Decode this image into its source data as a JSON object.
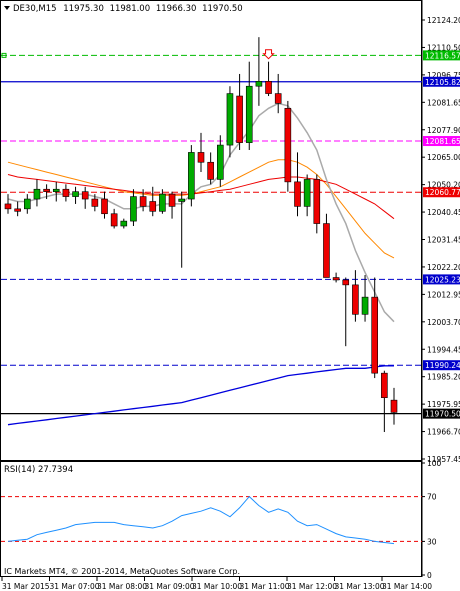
{
  "chart_data": {
    "type": "candlestick",
    "header": {
      "symbol": "DE30,M15",
      "open": "11975.30",
      "high": "11981.00",
      "low": "11966.30",
      "close": "11970.50"
    },
    "copyright": "IC Markets MT4, © 2001-2014, MetaQuotes Software Corp.",
    "price_axis": {
      "ylim": [
        11952.0,
        12131.0
      ],
      "ticks": [
        "12124.20",
        "12110.50",
        "12096.75",
        "12081.65",
        "12077.90",
        "12065.00",
        "12050.20",
        "12040.45",
        "12031.45",
        "12022.20",
        "12012.95",
        "12003.70",
        "11994.45",
        "11985.20",
        "11975.95",
        "11966.70",
        "11957.45"
      ]
    },
    "levels": [
      {
        "price": 12116.57,
        "label": "12116.57",
        "color": "#00bb00",
        "style": "dashed"
      },
      {
        "price": 12105.82,
        "label": "12105.82",
        "color": "#0000cc",
        "style": "solid"
      },
      {
        "price": 12081.65,
        "label": "12081.65",
        "color": "#ff00ff",
        "style": "dashed"
      },
      {
        "price": 12060.77,
        "label": "12060.77",
        "color": "#ee0000",
        "style": "dashed"
      },
      {
        "price": 12025.23,
        "label": "12025.23",
        "color": "#0000cc",
        "style": "dashed"
      },
      {
        "price": 11990.24,
        "label": "11990.24",
        "color": "#0000cc",
        "style": "dashed"
      },
      {
        "price": 11970.5,
        "label": "11970.50",
        "color": "#000000",
        "style": "solid"
      }
    ],
    "candles": [
      {
        "o": 12056,
        "h": 12060,
        "l": 12052,
        "c": 12054
      },
      {
        "o": 12054,
        "h": 12057,
        "l": 12051,
        "c": 12053
      },
      {
        "o": 12054,
        "h": 12060,
        "l": 12052,
        "c": 12058
      },
      {
        "o": 12058,
        "h": 12066,
        "l": 12055,
        "c": 12062
      },
      {
        "o": 12062,
        "h": 12064,
        "l": 12058,
        "c": 12061
      },
      {
        "o": 12061,
        "h": 12065,
        "l": 12057,
        "c": 12062
      },
      {
        "o": 12062,
        "h": 12064,
        "l": 12057,
        "c": 12059
      },
      {
        "o": 12059,
        "h": 12063,
        "l": 12056,
        "c": 12061
      },
      {
        "o": 12061,
        "h": 12063,
        "l": 12054,
        "c": 12058
      },
      {
        "o": 12058,
        "h": 12060,
        "l": 12053,
        "c": 12055
      },
      {
        "o": 12058,
        "h": 12061,
        "l": 12050,
        "c": 12052
      },
      {
        "o": 12052,
        "h": 12054,
        "l": 12046,
        "c": 12047
      },
      {
        "o": 12047,
        "h": 12050,
        "l": 12046,
        "c": 12049
      },
      {
        "o": 12049,
        "h": 12062,
        "l": 12047,
        "c": 12059
      },
      {
        "o": 12059,
        "h": 12062,
        "l": 12053,
        "c": 12055
      },
      {
        "o": 12057,
        "h": 12063,
        "l": 12051,
        "c": 12053
      },
      {
        "o": 12053,
        "h": 12062,
        "l": 12052,
        "c": 12060
      },
      {
        "o": 12060,
        "h": 12061,
        "l": 12050,
        "c": 12055
      },
      {
        "o": 12057,
        "h": 12061,
        "l": 12030,
        "c": 12058
      },
      {
        "o": 12058,
        "h": 12080,
        "l": 12055,
        "c": 12077
      },
      {
        "o": 12077,
        "h": 12085,
        "l": 12069,
        "c": 12073
      },
      {
        "o": 12073,
        "h": 12077,
        "l": 12064,
        "c": 12066
      },
      {
        "o": 12066,
        "h": 12084,
        "l": 12063,
        "c": 12080
      },
      {
        "o": 12080,
        "h": 12104,
        "l": 12075,
        "c": 12101
      },
      {
        "o": 12100,
        "h": 12109,
        "l": 12078,
        "c": 12081
      },
      {
        "o": 12081,
        "h": 12114,
        "l": 12078,
        "c": 12104
      },
      {
        "o": 12104,
        "h": 12124,
        "l": 12096,
        "c": 12106
      },
      {
        "o": 12106,
        "h": 12114,
        "l": 12100,
        "c": 12101
      },
      {
        "o": 12101,
        "h": 12109,
        "l": 12093,
        "c": 12097
      },
      {
        "o": 12095,
        "h": 12098,
        "l": 12061,
        "c": 12065
      },
      {
        "o": 12065,
        "h": 12077,
        "l": 12051,
        "c": 12055
      },
      {
        "o": 12055,
        "h": 12068,
        "l": 12051,
        "c": 12066
      },
      {
        "o": 12066,
        "h": 12068,
        "l": 12044,
        "c": 12048
      },
      {
        "o": 12048,
        "h": 12052,
        "l": 12026,
        "c": 12026
      },
      {
        "o": 12026,
        "h": 12028,
        "l": 12024,
        "c": 12025
      },
      {
        "o": 12025,
        "h": 12026,
        "l": 11998,
        "c": 12023
      },
      {
        "o": 12023,
        "h": 12029,
        "l": 12008,
        "c": 12011
      },
      {
        "o": 12011,
        "h": 12027,
        "l": 12008,
        "c": 12018
      },
      {
        "o": 12018,
        "h": 12026,
        "l": 11985,
        "c": 11987
      },
      {
        "o": 11987,
        "h": 11988,
        "l": 11963,
        "c": 11977
      },
      {
        "o": 11976,
        "h": 11981,
        "l": 11966,
        "c": 11971
      }
    ],
    "moving_averages": [
      {
        "name": "",
        "color": "#0000dd",
        "width": 1.3,
        "values": [
          11966,
          11966.5,
          11967,
          11967.5,
          11968,
          11968.5,
          11969,
          11969.5,
          11970,
          11970.5,
          11971,
          11971.5,
          11972,
          11972.5,
          11973,
          11973.5,
          11974,
          11974.5,
          11975,
          11976,
          11977,
          11978,
          11979,
          11980,
          11981,
          11982,
          11983,
          11984,
          11985,
          11986,
          11986.5,
          11987,
          11987.5,
          11988,
          11988.5,
          11989,
          11989,
          11989,
          11989.5,
          11990,
          11990
        ]
      },
      {
        "name": "",
        "color": "#ff8800",
        "width": 1,
        "values": [
          12073,
          12072,
          12071,
          12070,
          12069,
          12068,
          12067,
          12066,
          12065,
          12064,
          12063,
          12062,
          12061,
          12060.5,
          12060,
          12059.5,
          12059.5,
          12059.5,
          12059.5,
          12060,
          12061,
          12062,
          12063,
          12065,
          12067,
          12069,
          12071,
          12073,
          12074,
          12074,
          12073,
          12071,
          12068,
          12064,
          12059,
          12054,
          12049,
          12044,
          12040,
          12036,
          12034
        ]
      },
      {
        "name": "",
        "color": "#ee0000",
        "width": 1,
        "values": [
          12068,
          12067,
          12066.5,
          12066,
          12065.5,
          12065,
          12064.5,
          12064,
          12063.5,
          12063,
          12062.5,
          12062,
          12061.5,
          12061,
          12060.5,
          12060,
          12060,
          12060,
          12060,
          12060,
          12060.5,
          12061,
          12061.5,
          12062,
          12063,
          12064,
          12065,
          12066,
          12066.5,
          12067,
          12067,
          12066.5,
          12066,
          12065,
          12064,
          12062,
          12060,
          12058,
          12056,
          12053,
          12050
        ]
      },
      {
        "name": "",
        "color": "#aaaaaa",
        "width": 1.5,
        "values": [
          12058,
          12057,
          12057,
          12058,
          12059,
          12060,
          12060,
          12060,
          12060,
          12059,
          12058,
          12056,
          12054,
          12054,
          12055,
          12055,
          12056,
          12056,
          12056,
          12060,
          12063,
          12064,
          12068,
          12076,
          12081,
          12086,
          12092,
          12095,
          12097,
          12096,
          12091,
          12085,
          12078,
          12066,
          12056,
          12048,
          12037,
          12028,
          12020,
          12012,
          12008
        ]
      }
    ],
    "rsi": {
      "label": "RSI(14) 27.7394",
      "ylim": [
        0,
        100
      ],
      "ticks": [
        "100",
        "70",
        "30",
        "0"
      ],
      "levels": [
        70,
        30
      ],
      "values": [
        30,
        31,
        32,
        36,
        38,
        40,
        42,
        45,
        46,
        47,
        47,
        47,
        45,
        44,
        43,
        42,
        44,
        48,
        53,
        55,
        57,
        60,
        57,
        52,
        60,
        70,
        62,
        56,
        59,
        56,
        48,
        44,
        45,
        41,
        37,
        34,
        33,
        32,
        30,
        29,
        28
      ]
    },
    "time_axis": [
      "31 Mar 2015",
      "31 Mar 07:00",
      "31 Mar 08:00",
      "31 Mar 09:00",
      "31 Mar 10:00",
      "31 Mar 11:00",
      "31 Mar 12:00",
      "31 Mar 13:00",
      "31 Mar 14:00"
    ],
    "arrow_price": 12114,
    "arrow_index": 27,
    "colors": {
      "bull": "#00aa00",
      "bear": "#ee0000",
      "text": "#000000"
    }
  }
}
